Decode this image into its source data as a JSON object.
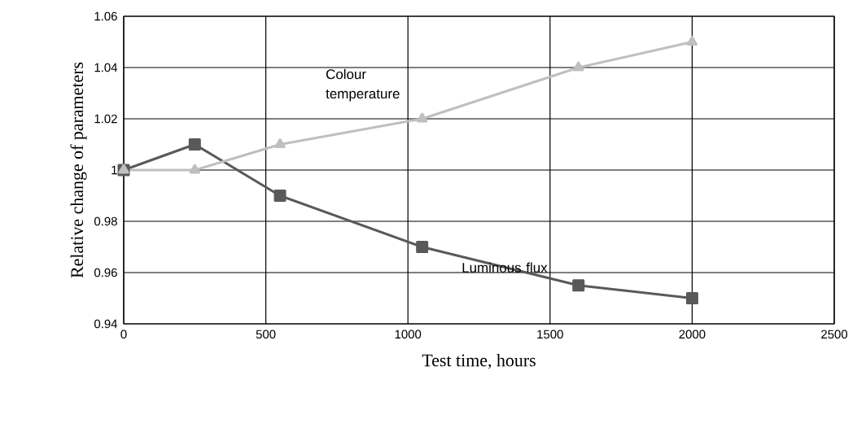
{
  "chart_data": {
    "type": "line",
    "xlabel": "Test time,  hours",
    "ylabel": "Relative  change  of parameters",
    "xlim": [
      0,
      2500
    ],
    "xticks": [
      0,
      500,
      1000,
      1500,
      2000,
      2500
    ],
    "ylim": [
      0.94,
      1.06
    ],
    "yticks": [
      {
        "value": 0.94,
        "label": "0.94"
      },
      {
        "value": 0.96,
        "label": "0.96"
      },
      {
        "value": 0.98,
        "label": "0.98"
      },
      {
        "value": 1,
        "label": "1"
      },
      {
        "value": 1.02,
        "label": "1.02"
      },
      {
        "value": 1.04,
        "label": "1.04"
      },
      {
        "value": 1.06,
        "label": "1.06"
      }
    ],
    "grid": true,
    "line_style": "solid",
    "series": [
      {
        "name": "Luminous flux",
        "color": "#595959",
        "marker": "square",
        "x": [
          0,
          250,
          550,
          1050,
          1600,
          2000
        ],
        "values": [
          1.0,
          1.01,
          0.99,
          0.97,
          0.955,
          0.95
        ]
      },
      {
        "name": "Colour temperature",
        "color": "#bfbfbf",
        "marker": "triangle",
        "x": [
          0,
          250,
          550,
          1050,
          1600,
          2000
        ],
        "values": [
          1.0,
          1.0,
          1.01,
          1.02,
          1.04,
          1.05
        ]
      }
    ]
  }
}
